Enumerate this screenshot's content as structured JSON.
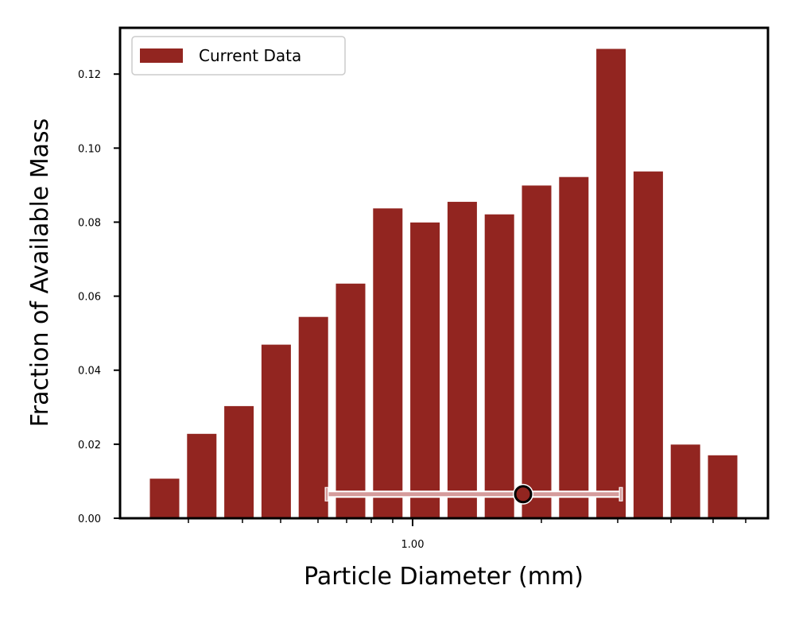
{
  "chart_data": {
    "type": "bar",
    "xlabel": "Particle Diameter (mm)",
    "ylabel": "Fraction of Available Mass",
    "x_scale": "log",
    "x_tick_labels": [
      "1.00"
    ],
    "ylim": [
      0,
      0.1325
    ],
    "y_ticks": [
      0.0,
      0.02,
      0.04,
      0.06,
      0.08,
      0.1,
      0.12
    ],
    "y_tick_labels": [
      "0.00",
      "0.02",
      "0.04",
      "0.06",
      "0.08",
      "0.10",
      "0.12"
    ],
    "grid": false,
    "legend_position": "top-left",
    "series": [
      {
        "name": "Current Data",
        "color": "#922520",
        "values": [
          0.0107,
          0.0228,
          0.0303,
          0.0469,
          0.0544,
          0.0634,
          0.0837,
          0.0799,
          0.0855,
          0.0821,
          0.0899,
          0.0922,
          0.1268,
          0.0937,
          0.0199,
          0.017
        ]
      }
    ],
    "errorbar": {
      "center_fraction": 0.0065,
      "color": "#d59b9b",
      "marker_fill": "#922520"
    }
  }
}
